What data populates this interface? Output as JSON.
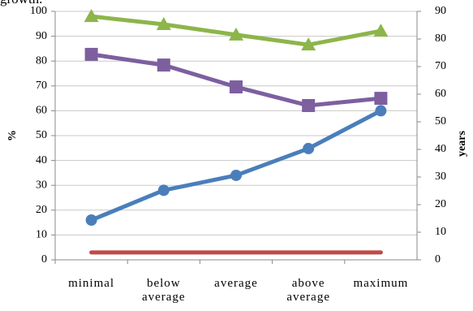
{
  "chart_data": {
    "type": "line",
    "title": "growth.",
    "categories": [
      "minimal",
      "below average",
      "average",
      "above average",
      "maximum"
    ],
    "ylabel": "%",
    "y2label": "years",
    "ylim": [
      0,
      100
    ],
    "yticks": [
      0,
      10,
      20,
      30,
      40,
      50,
      60,
      70,
      80,
      90,
      100
    ],
    "y2lim": [
      0,
      90
    ],
    "y2ticks": [
      0,
      10,
      20,
      30,
      40,
      50,
      60,
      70,
      80,
      90
    ],
    "grid": true,
    "series": [
      {
        "color": "#4a7ebb",
        "marker": "circle",
        "values": [
          16,
          28,
          34,
          44.8,
          60
        ]
      },
      {
        "color": "#7d5fa0",
        "marker": "square",
        "values": [
          82.7,
          78.4,
          69.6,
          62.1,
          65
        ]
      },
      {
        "color": "#8db54a",
        "marker": "triangle",
        "axis": "y2",
        "values": [
          88.2,
          85.3,
          81.5,
          77.9,
          82.9
        ]
      },
      {
        "color": "#be4b48",
        "marker": "none",
        "values": [
          3,
          3,
          3,
          3,
          3
        ]
      }
    ]
  }
}
